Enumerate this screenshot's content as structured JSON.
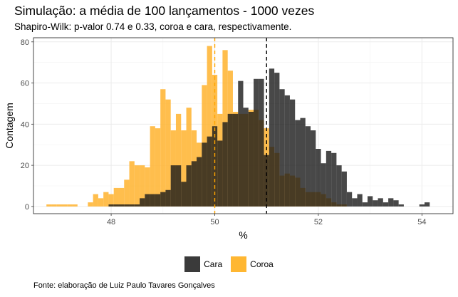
{
  "title": "Simulação: a média de 100 lançamentos - 1000 vezes",
  "subtitle": "Shapiro-Wilk: p-valor 0.74 e 0.33, coroa e cara, respectivamente.",
  "caption": "Fonte: elaboração de Luiz Paulo Tavares Gonçalves",
  "chart_data": {
    "type": "bar",
    "subtype": "histogram-overlay",
    "title": "Simulação: a média de 100 lançamentos - 1000 vezes",
    "subtitle": "Shapiro-Wilk: p-valor 0.74 e 0.33, coroa e cara, respectivamente.",
    "xlabel": "%",
    "ylabel": "Contagem",
    "xlim": [
      46.5,
      54.6
    ],
    "ylim": [
      -3.5,
      82
    ],
    "x_ticks": [
      48,
      50,
      52,
      54
    ],
    "y_ticks": [
      0,
      20,
      40,
      60,
      80
    ],
    "bin_width": 0.1,
    "grid": true,
    "legend_position": "bottom",
    "series": [
      {
        "name": "Coroa",
        "color": "#FFB32E",
        "opacity": 0.85,
        "mean_line": 50.0,
        "mean_line_color": "#FFA500",
        "bins": [
          {
            "x": 46.8,
            "y": 1
          },
          {
            "x": 46.9,
            "y": 1
          },
          {
            "x": 47.0,
            "y": 1
          },
          {
            "x": 47.1,
            "y": 1
          },
          {
            "x": 47.2,
            "y": 1
          },
          {
            "x": 47.3,
            "y": 1
          },
          {
            "x": 47.4,
            "y": 0
          },
          {
            "x": 47.5,
            "y": 0
          },
          {
            "x": 47.6,
            "y": 2
          },
          {
            "x": 47.7,
            "y": 6
          },
          {
            "x": 47.8,
            "y": 4
          },
          {
            "x": 47.9,
            "y": 7
          },
          {
            "x": 48.0,
            "y": 6
          },
          {
            "x": 48.1,
            "y": 9
          },
          {
            "x": 48.2,
            "y": 9
          },
          {
            "x": 48.3,
            "y": 13
          },
          {
            "x": 48.4,
            "y": 22
          },
          {
            "x": 48.5,
            "y": 20
          },
          {
            "x": 48.6,
            "y": 20
          },
          {
            "x": 48.7,
            "y": 19
          },
          {
            "x": 48.8,
            "y": 39
          },
          {
            "x": 48.9,
            "y": 38
          },
          {
            "x": 49.0,
            "y": 57
          },
          {
            "x": 49.1,
            "y": 52
          },
          {
            "x": 49.2,
            "y": 37
          },
          {
            "x": 49.3,
            "y": 45
          },
          {
            "x": 49.4,
            "y": 37
          },
          {
            "x": 49.5,
            "y": 48
          },
          {
            "x": 49.6,
            "y": 37
          },
          {
            "x": 49.7,
            "y": 31
          },
          {
            "x": 49.8,
            "y": 59
          },
          {
            "x": 49.9,
            "y": 78
          },
          {
            "x": 50.0,
            "y": 64
          },
          {
            "x": 50.1,
            "y": 45
          },
          {
            "x": 50.2,
            "y": 76
          },
          {
            "x": 50.3,
            "y": 66
          },
          {
            "x": 50.4,
            "y": 46
          },
          {
            "x": 50.5,
            "y": 45
          },
          {
            "x": 50.6,
            "y": 45
          },
          {
            "x": 50.7,
            "y": 47
          },
          {
            "x": 50.8,
            "y": 47
          },
          {
            "x": 50.9,
            "y": 42
          },
          {
            "x": 51.0,
            "y": 38
          },
          {
            "x": 51.1,
            "y": 29
          },
          {
            "x": 51.2,
            "y": 26
          },
          {
            "x": 51.3,
            "y": 15
          },
          {
            "x": 51.4,
            "y": 16
          },
          {
            "x": 51.5,
            "y": 15
          },
          {
            "x": 51.6,
            "y": 14
          },
          {
            "x": 51.7,
            "y": 9
          },
          {
            "x": 51.8,
            "y": 7
          },
          {
            "x": 51.9,
            "y": 7
          },
          {
            "x": 52.0,
            "y": 7
          },
          {
            "x": 52.1,
            "y": 6
          },
          {
            "x": 52.2,
            "y": 4
          },
          {
            "x": 52.3,
            "y": 2
          },
          {
            "x": 52.4,
            "y": 1
          },
          {
            "x": 52.5,
            "y": 1
          },
          {
            "x": 52.6,
            "y": 0
          },
          {
            "x": 52.7,
            "y": 0
          }
        ]
      },
      {
        "name": "Cara",
        "color": "#1A1A1A",
        "opacity": 0.8,
        "mean_line": 51.0,
        "mean_line_color": "#000000",
        "bins": [
          {
            "x": 48.0,
            "y": 1
          },
          {
            "x": 48.1,
            "y": 1
          },
          {
            "x": 48.2,
            "y": 1
          },
          {
            "x": 48.3,
            "y": 1
          },
          {
            "x": 48.4,
            "y": 1
          },
          {
            "x": 48.5,
            "y": 1
          },
          {
            "x": 48.6,
            "y": 4
          },
          {
            "x": 48.7,
            "y": 6
          },
          {
            "x": 48.8,
            "y": 6
          },
          {
            "x": 48.9,
            "y": 6
          },
          {
            "x": 49.0,
            "y": 7
          },
          {
            "x": 49.1,
            "y": 8
          },
          {
            "x": 49.2,
            "y": 20
          },
          {
            "x": 49.3,
            "y": 20
          },
          {
            "x": 49.4,
            "y": 12
          },
          {
            "x": 49.5,
            "y": 20
          },
          {
            "x": 49.6,
            "y": 22
          },
          {
            "x": 49.7,
            "y": 24
          },
          {
            "x": 49.8,
            "y": 31
          },
          {
            "x": 49.9,
            "y": 34
          },
          {
            "x": 50.0,
            "y": 39
          },
          {
            "x": 50.1,
            "y": 32
          },
          {
            "x": 50.2,
            "y": 41
          },
          {
            "x": 50.3,
            "y": 45
          },
          {
            "x": 50.4,
            "y": 45
          },
          {
            "x": 50.5,
            "y": 61
          },
          {
            "x": 50.6,
            "y": 48
          },
          {
            "x": 50.7,
            "y": 46
          },
          {
            "x": 50.8,
            "y": 62
          },
          {
            "x": 50.9,
            "y": 62
          },
          {
            "x": 51.0,
            "y": 25
          },
          {
            "x": 51.1,
            "y": 67
          },
          {
            "x": 51.2,
            "y": 65
          },
          {
            "x": 51.3,
            "y": 57
          },
          {
            "x": 51.4,
            "y": 54
          },
          {
            "x": 51.5,
            "y": 52
          },
          {
            "x": 51.6,
            "y": 42
          },
          {
            "x": 51.7,
            "y": 43
          },
          {
            "x": 51.8,
            "y": 39
          },
          {
            "x": 51.9,
            "y": 37
          },
          {
            "x": 52.0,
            "y": 28
          },
          {
            "x": 52.1,
            "y": 21
          },
          {
            "x": 52.2,
            "y": 27
          },
          {
            "x": 52.3,
            "y": 26
          },
          {
            "x": 52.4,
            "y": 20
          },
          {
            "x": 52.5,
            "y": 17
          },
          {
            "x": 52.6,
            "y": 7
          },
          {
            "x": 52.7,
            "y": 4
          },
          {
            "x": 52.8,
            "y": 6
          },
          {
            "x": 52.9,
            "y": 2
          },
          {
            "x": 53.0,
            "y": 5
          },
          {
            "x": 53.1,
            "y": 3
          },
          {
            "x": 53.2,
            "y": 4
          },
          {
            "x": 53.3,
            "y": 2
          },
          {
            "x": 53.4,
            "y": 4
          },
          {
            "x": 53.5,
            "y": 3
          },
          {
            "x": 53.6,
            "y": 1
          },
          {
            "x": 53.7,
            "y": 0
          },
          {
            "x": 53.8,
            "y": 0
          },
          {
            "x": 53.9,
            "y": 0
          },
          {
            "x": 54.0,
            "y": 1
          },
          {
            "x": 54.1,
            "y": 2
          }
        ]
      }
    ],
    "legend": [
      {
        "name": "Cara",
        "color": "#3a3a3a"
      },
      {
        "name": "Coroa",
        "color": "#FFB732"
      }
    ]
  }
}
